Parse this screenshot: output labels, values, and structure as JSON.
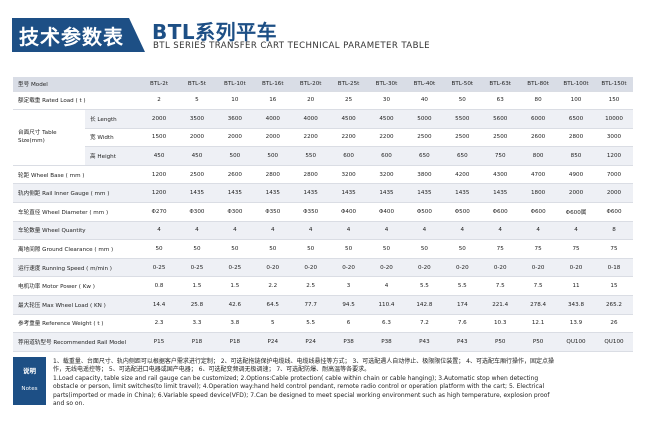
{
  "header": {
    "tag": "技术参数表",
    "title": "BTL系列平车",
    "subtitle": "BTL SERIES TRANSFER CART TECHNICAL PARAMETER TABLE"
  },
  "table": {
    "model_label": "型号 Model",
    "models": [
      "BTL-2t",
      "BTL-5t",
      "BTL-10t",
      "BTL-16t",
      "BTL-20t",
      "BTL-25t",
      "BTL-30t",
      "BTL-40t",
      "BTL-50t",
      "BTL-63t",
      "BTL-80t",
      "BTL-100t",
      "BTL-150t"
    ],
    "load_label": "额定载重 Rated Load ( t )",
    "load": [
      "2",
      "5",
      "10",
      "16",
      "20",
      "25",
      "30",
      "40",
      "50",
      "63",
      "80",
      "100",
      "150"
    ],
    "table_size_label": "台面尺寸 Table Size(mm)",
    "length_label": "长 Length",
    "length": [
      "2000",
      "3500",
      "3600",
      "4000",
      "4000",
      "4500",
      "4500",
      "5000",
      "5500",
      "5600",
      "6000",
      "6500",
      "10000"
    ],
    "width_label": "宽 Width",
    "width": [
      "1500",
      "2000",
      "2000",
      "2000",
      "2200",
      "2200",
      "2200",
      "2500",
      "2500",
      "2500",
      "2600",
      "2800",
      "3000"
    ],
    "height_label": "高 Height",
    "height": [
      "450",
      "450",
      "500",
      "500",
      "550",
      "600",
      "600",
      "650",
      "650",
      "750",
      "800",
      "850",
      "1200"
    ],
    "rows": [
      {
        "label": "轮距 Wheel Base ( mm )",
        "values": [
          "1200",
          "2500",
          "2600",
          "2800",
          "2800",
          "3200",
          "3200",
          "3800",
          "4200",
          "4300",
          "4700",
          "4900",
          "7000"
        ]
      },
      {
        "label": "轨内侧距 Rail Inner Gauge ( mm )",
        "values": [
          "1200",
          "1435",
          "1435",
          "1435",
          "1435",
          "1435",
          "1435",
          "1435",
          "1435",
          "1435",
          "1800",
          "2000",
          "2000"
        ]
      },
      {
        "label": "车轮直径 Wheel Diameter ( mm )",
        "values": [
          "Φ270",
          "Φ300",
          "Φ300",
          "Φ350",
          "Φ350",
          "Φ400",
          "Φ400",
          "Φ500",
          "Φ500",
          "Φ600",
          "Φ600",
          "Φ600属",
          "Φ600"
        ]
      },
      {
        "label": "车轮数量 Wheel Quantity",
        "values": [
          "4",
          "4",
          "4",
          "4",
          "4",
          "4",
          "4",
          "4",
          "4",
          "4",
          "4",
          "4",
          "8"
        ]
      },
      {
        "label": "离地间隙 Ground Clearance ( mm )",
        "values": [
          "50",
          "50",
          "50",
          "50",
          "50",
          "50",
          "50",
          "50",
          "50",
          "75",
          "75",
          "75",
          "75"
        ]
      },
      {
        "label": "运行速度 Running Speed ( m/min )",
        "values": [
          "0-25",
          "0-25",
          "0-25",
          "0-20",
          "0-20",
          "0-20",
          "0-20",
          "0-20",
          "0-20",
          "0-20",
          "0-20",
          "0-20",
          "0-18"
        ]
      },
      {
        "label": "电机功率 Motor Power ( Kw )",
        "values": [
          "0.8",
          "1.5",
          "1.5",
          "2.2",
          "2.5",
          "3",
          "4",
          "5.5",
          "5.5",
          "7.5",
          "7.5",
          "11",
          "15"
        ]
      },
      {
        "label": "最大轮压 Max Wheel Load ( KN )",
        "values": [
          "14.4",
          "25.8",
          "42.6",
          "64.5",
          "77.7",
          "94.5",
          "110.4",
          "142.8",
          "174",
          "221.4",
          "278.4",
          "343.8",
          "265.2"
        ]
      },
      {
        "label": "参考重量 Reference Weight ( t )",
        "values": [
          "2.3",
          "3.3",
          "3.8",
          "5",
          "5.5",
          "6",
          "6.3",
          "7.2",
          "7.6",
          "10.3",
          "12.1",
          "13.9",
          "26"
        ]
      },
      {
        "label": "荐用道轨型号 Recommended Rail Model",
        "values": [
          "P15",
          "P18",
          "P18",
          "P24",
          "P24",
          "P38",
          "P38",
          "P43",
          "P43",
          "P50",
          "P50",
          "QU100",
          "QU100"
        ]
      }
    ]
  },
  "notes": {
    "label_cn": "说明",
    "label_en": "Notes",
    "cn_line1": "1、载重量、台面尺寸、轨内侧距可以根据客户需求进行定制；   2、可选配拖链保护电缆线、电缆线悬挂等方式；   3、可选配遇人自动停止、极限限位装置；   4、可选配车厢行操作，固定点操",
    "cn_line2": "作，无线电遥控等；   5、可选配进口电器或国产电器；   6、可选配变频调无极调速；   7、可选配防爆、耐高温等各要求。",
    "en_line1": "1.Load capacity, table size and rail gauge can be customized;  2.Options:Cable protection( cable within chain or cable hanging);  3.Automatic stop when detecting",
    "en_line2": "obstacle or person, limit switches(to limit travel);  4.Operation way:hand held control pendant, remote radio control or operation platform with the cart;  5. Electrical",
    "en_line3": "parts(imported or made in China);  6.Variable speed device(VFD);  7.Can be designed to meet special working environment such as high temperature, explosion proof",
    "en_line4": "and so on."
  }
}
